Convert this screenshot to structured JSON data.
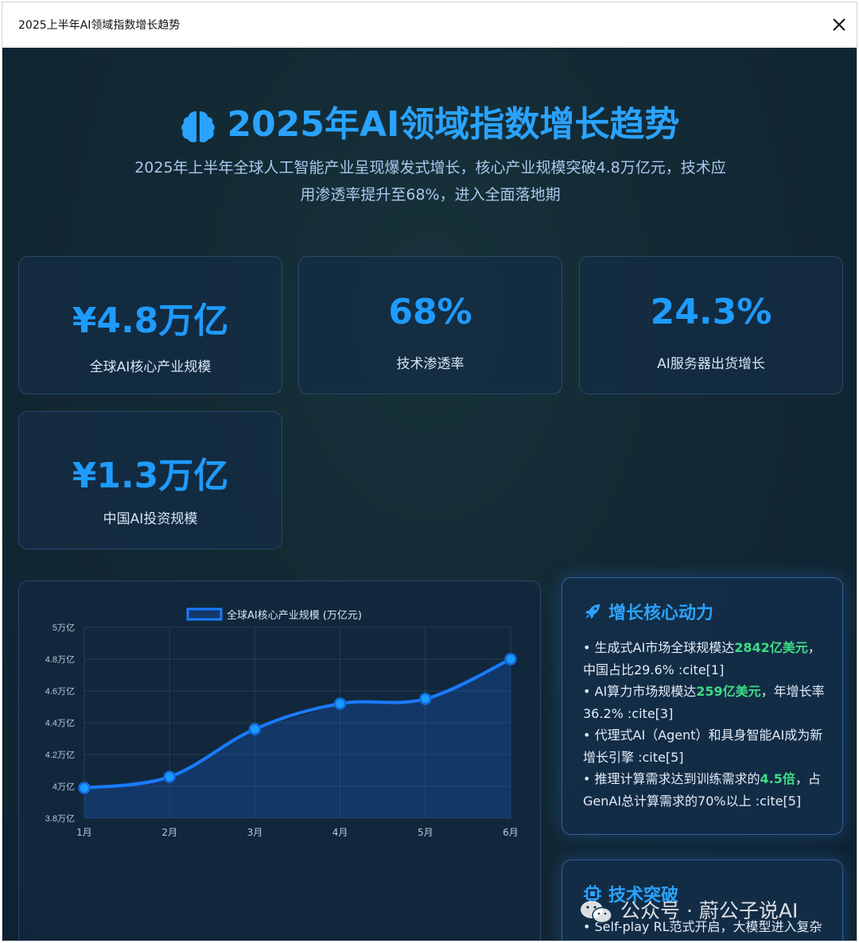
{
  "window": {
    "title": "2025上半年AI领域指数增长趋势"
  },
  "hero": {
    "title": "2025年AI领域指数增长趋势",
    "subtitle_line1": "2025年上半年全球人工智能产业呈现爆发式增长，核心产业规模突破4.8万亿元，技术应",
    "subtitle_line2": "用渗透率提升至68%，进入全面落地期"
  },
  "stats": [
    {
      "value": "¥4.8万亿",
      "label": "全球AI核心产业规模"
    },
    {
      "value": "68%",
      "label": "技术渗透率"
    },
    {
      "value": "24.3%",
      "label": "AI服务器出货增长"
    },
    {
      "value": "¥1.3万亿",
      "label": "中国AI投资规模"
    }
  ],
  "colors": {
    "accent": "#1e9bff",
    "highlight": "#3ddc84",
    "line": "#1a7bff"
  },
  "chart_data": {
    "type": "area",
    "title": "",
    "categories": [
      "1月",
      "2月",
      "3月",
      "4月",
      "5月",
      "6月"
    ],
    "series": [
      {
        "name": "全球AI核心产业规模 (万亿元)",
        "values": [
          3.99,
          4.06,
          4.36,
          4.52,
          4.55,
          4.8
        ]
      }
    ],
    "ylim": [
      3.8,
      5.0
    ],
    "yticks": [
      3.8,
      4.0,
      4.2,
      4.4,
      4.6,
      4.8,
      5.0
    ],
    "ytick_labels": [
      "3.8万亿",
      "4万亿",
      "4.2万亿",
      "4.4万亿",
      "4.6万亿",
      "4.8万亿",
      "5万亿"
    ],
    "grid": true,
    "legend": "top-center"
  },
  "growth_card": {
    "title": "增长核心动力",
    "icon": "rocket-icon",
    "items": [
      {
        "pre": "• 生成式AI市场全球规模达",
        "hl": "2842亿美元",
        "post": "，中国占比29.6% :cite[1]"
      },
      {
        "pre": "• AI算力市场规模达",
        "hl": "259亿美元",
        "post": "，年增长率36.2% :cite[3]"
      },
      {
        "pre": "• 代理式AI（Agent）和具身智能AI成为新增长引擎 :cite[5]",
        "hl": "",
        "post": ""
      },
      {
        "pre": "• 推理计算需求达到训练需求的",
        "hl": "4.5倍",
        "post": "，占GenAI总计算需求的70%以上 :cite[5]"
      }
    ]
  },
  "tech_card": {
    "title": "技术突破",
    "icon": "chip-icon",
    "items": [
      {
        "pre": "• Self-play RL范式开启，大模型进入复杂",
        "hl": "",
        "post": ""
      }
    ]
  },
  "watermark": {
    "text": "公众号 · 蔚公子说AI",
    "icon": "wechat-icon"
  }
}
